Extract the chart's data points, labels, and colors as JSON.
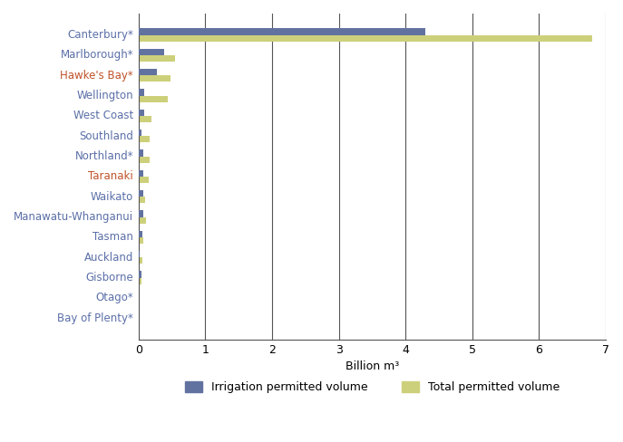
{
  "regions": [
    "Canterbury*",
    "Marlborough*",
    "Hawke's Bay*",
    "Wellington",
    "West Coast",
    "Southland",
    "Northland*",
    "Taranaki",
    "Waikato",
    "Manawatu-Whanganui",
    "Tasman",
    "Auckland",
    "Gisborne",
    "Otago*",
    "Bay of Plenty*"
  ],
  "irrigation_values": [
    4.3,
    0.38,
    0.28,
    0.09,
    0.09,
    0.05,
    0.07,
    0.07,
    0.07,
    0.07,
    0.06,
    0.02,
    0.04,
    0.005,
    0.005
  ],
  "total_values": [
    6.8,
    0.55,
    0.48,
    0.44,
    0.2,
    0.17,
    0.17,
    0.16,
    0.1,
    0.11,
    0.07,
    0.06,
    0.05,
    0.015,
    0.005
  ],
  "irrigation_color": "#6272A0",
  "total_color": "#CDD07A",
  "xlabel": "Billion m³",
  "xlim": [
    0,
    7
  ],
  "xticks": [
    0,
    1,
    2,
    3,
    4,
    5,
    6,
    7
  ],
  "legend_irrigation": "Irrigation permitted volume",
  "legend_total": "Total permitted volume",
  "background_color": "#ffffff",
  "region_label_colors": {
    "Canterbury*": "#5B6FA8",
    "Marlborough*": "#5B6FA8",
    "Hawke's Bay*": "#C0522A",
    "Wellington": "#5B6FA8",
    "West Coast": "#5B6FA8",
    "Southland": "#5B6FA8",
    "Northland*": "#5B6FA8",
    "Taranaki": "#C0522A",
    "Waikato": "#5B6FA8",
    "Manawatu-Whanganui": "#5B6FA8",
    "Tasman": "#5B6FA8",
    "Auckland": "#5B6FA8",
    "Gisborne": "#5B6FA8",
    "Otago*": "#5B6FA8",
    "Bay of Plenty*": "#5B6FA8"
  },
  "bar_height": 0.32,
  "figsize": [
    6.87,
    4.88
  ],
  "dpi": 100
}
